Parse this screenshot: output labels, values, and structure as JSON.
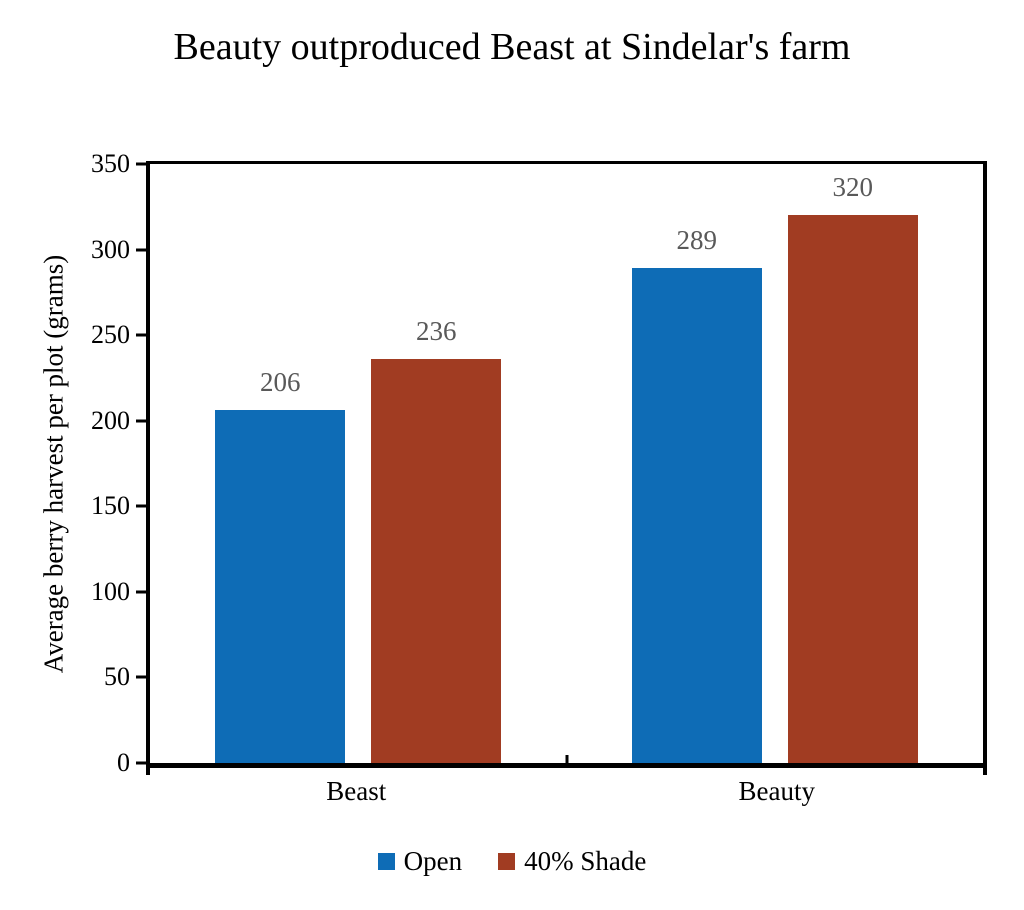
{
  "figure": {
    "background": "#ffffff",
    "axis_color": "#000000"
  },
  "chart_data": {
    "type": "bar",
    "title": "Beauty outproduced Beast at Sindelar's farm",
    "xlabel": "",
    "ylabel": "Average berry harvest per plot (grams)",
    "categories": [
      "Beast",
      "Beauty"
    ],
    "series": [
      {
        "name": "Open",
        "color": "#0E6CB6",
        "values": [
          206,
          289
        ]
      },
      {
        "name": "40% Shade",
        "color": "#A13C22",
        "values": [
          236,
          320
        ]
      }
    ],
    "ylim": [
      0,
      350
    ],
    "yticks": [
      0,
      50,
      100,
      150,
      200,
      250,
      300,
      350
    ],
    "grid": false,
    "legend_position": "bottom",
    "data_labels": true,
    "data_label_color": "#595959"
  }
}
